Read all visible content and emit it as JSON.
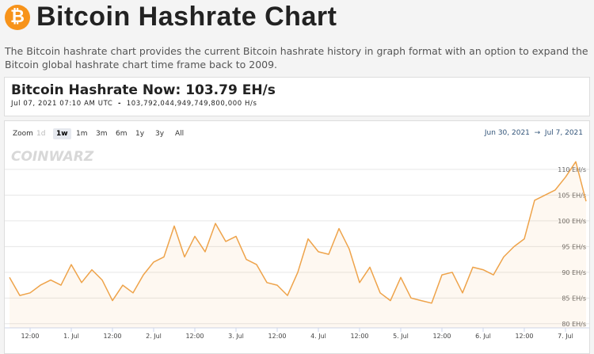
{
  "header": {
    "icon": "₿",
    "title": "Bitcoin Hashrate Chart",
    "description": "The Bitcoin hashrate chart provides the current Bitcoin hashrate history in graph format with an option to expand the Bitcoin global hashrate chart time frame back to 2009."
  },
  "current": {
    "label": "Bitcoin Hashrate Now: 103.79 EH/s",
    "time": "Jul 07, 2021 07:10 AM UTC",
    "separator": "-",
    "raw": "103,792,044,949,749,800,000 H/s"
  },
  "controls": {
    "zoom_label": "Zoom",
    "buttons": [
      "1d",
      "1w",
      "1m",
      "3m",
      "6m",
      "1y",
      "3y",
      "All"
    ],
    "selected": 1,
    "range_from": "Jun 30, 2021",
    "range_arrow": "→",
    "range_to": "Jul 7, 2021"
  },
  "chart_data": {
    "type": "line",
    "watermark": "COINWARZ",
    "categories": [
      null,
      null,
      "12:00",
      null,
      null,
      null,
      "1. Jul",
      null,
      null,
      null,
      "12:00",
      null,
      null,
      null,
      "2. Jul",
      null,
      null,
      null,
      "12:00",
      null,
      null,
      null,
      "3. Jul",
      null,
      null,
      null,
      "12:00",
      null,
      null,
      null,
      "4. Jul",
      null,
      null,
      null,
      "12:00",
      null,
      null,
      null,
      "5. Jul",
      null,
      null,
      null,
      "12:00",
      null,
      null,
      null,
      "6. Jul",
      null,
      null,
      null,
      "12:00",
      null,
      null,
      null,
      "7. Jul",
      null,
      null
    ],
    "series": [
      {
        "name": "Hashrate",
        "color": "#eea34a",
        "values": [
          89,
          85.5,
          86,
          87.5,
          88.5,
          87.5,
          91.5,
          88,
          90.5,
          88.5,
          84.5,
          87.5,
          86,
          89.5,
          92,
          93,
          99,
          93,
          97,
          94,
          99.5,
          96,
          97,
          92.5,
          91.5,
          88,
          87.5,
          85.5,
          90,
          96.5,
          94,
          93.5,
          98.5,
          94.5,
          88,
          91,
          86,
          84.5,
          89,
          85,
          84.5,
          84,
          89.5,
          90,
          86,
          91,
          90.5,
          89.5,
          93,
          95,
          96.5,
          104,
          105,
          106,
          108.5,
          111.5,
          103.8
        ]
      }
    ],
    "ylim": [
      79.2,
      114.3
    ],
    "yticks": [
      {
        "value": 80,
        "label": "80 EH/s"
      },
      {
        "value": 85,
        "label": "85 EH/s"
      },
      {
        "value": 90,
        "label": "90 EH/s"
      },
      {
        "value": 95,
        "label": "95 EH/s"
      },
      {
        "value": 100,
        "label": "100 EH/s"
      },
      {
        "value": 105,
        "label": "105 EH/s"
      },
      {
        "value": 110,
        "label": "110 EH/s"
      }
    ],
    "grid": true
  }
}
